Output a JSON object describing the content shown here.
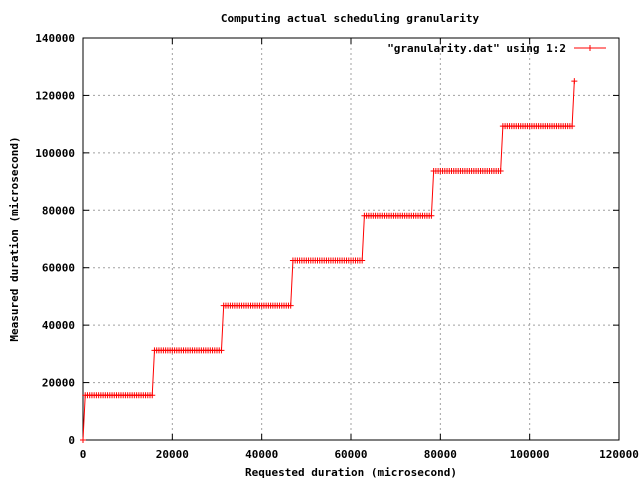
{
  "chart_data": {
    "type": "line",
    "title": "Computing actual scheduling granularity",
    "xlabel": "Requested duration (microsecond)",
    "ylabel": "Measured duration (microsecond)",
    "xlim": [
      0,
      120000
    ],
    "ylim": [
      0,
      140000
    ],
    "x_ticks": [
      0,
      20000,
      40000,
      60000,
      80000,
      100000,
      120000
    ],
    "y_ticks": [
      0,
      20000,
      40000,
      60000,
      80000,
      100000,
      120000,
      140000
    ],
    "x_tick_labels": [
      "0",
      "20000",
      "40000",
      "60000",
      "80000",
      "100000",
      "120000"
    ],
    "y_tick_labels": [
      "0",
      "20000",
      "40000",
      "60000",
      "80000",
      "100000",
      "120000",
      "140000"
    ],
    "grid": true,
    "legend_position": "top-right",
    "series": [
      {
        "name": "\"granularity.dat\" using 1:2",
        "color": "#ff0000",
        "marker": "plus",
        "x_step": 500,
        "steps": [
          {
            "x_from": 0,
            "x_to": 0,
            "y": 0
          },
          {
            "x_from": 500,
            "x_to": 15500,
            "y": 15600
          },
          {
            "x_from": 16000,
            "x_to": 31000,
            "y": 31200
          },
          {
            "x_from": 31500,
            "x_to": 46500,
            "y": 46800
          },
          {
            "x_from": 47000,
            "x_to": 62500,
            "y": 62500
          },
          {
            "x_from": 63000,
            "x_to": 78000,
            "y": 78100
          },
          {
            "x_from": 78500,
            "x_to": 93500,
            "y": 93700
          },
          {
            "x_from": 94000,
            "x_to": 109500,
            "y": 109300
          },
          {
            "x_from": 110000,
            "x_to": 110000,
            "y": 125000
          }
        ]
      }
    ]
  }
}
